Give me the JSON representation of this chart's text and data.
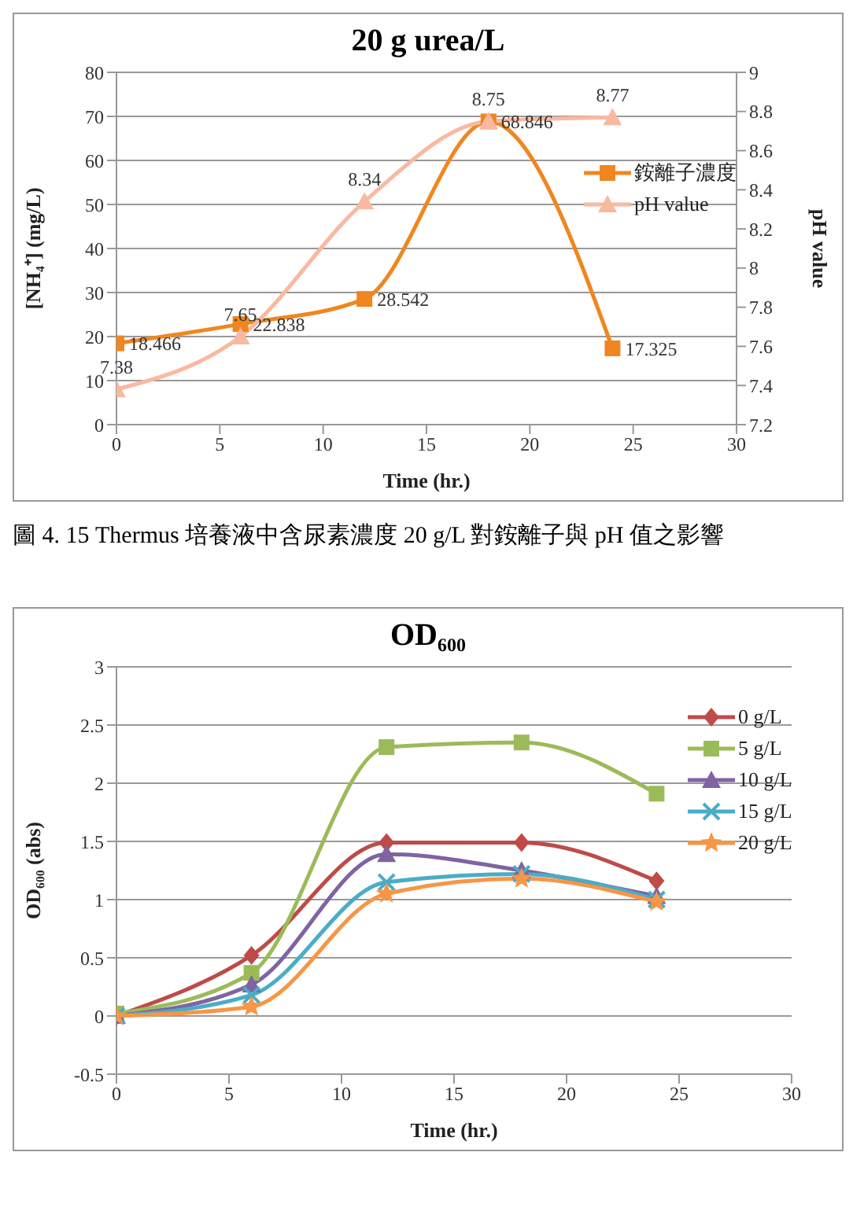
{
  "chart_data": [
    {
      "type": "line",
      "title": "20 g urea/L",
      "xlabel": "Time (hr.)",
      "ylabel": "[NH₄⁺] (mg/L)",
      "y2label": "pH value",
      "x": [
        0,
        6,
        12,
        18,
        24
      ],
      "xlim": [
        0,
        30
      ],
      "xticks": [
        0,
        5,
        10,
        15,
        20,
        25,
        30
      ],
      "ylim": [
        0,
        80
      ],
      "yticks": [
        0,
        10,
        20,
        30,
        40,
        50,
        60,
        70,
        80
      ],
      "y2lim": [
        7.2,
        9
      ],
      "y2ticks": [
        7.2,
        7.4,
        7.6,
        7.8,
        8,
        8.2,
        8.4,
        8.6,
        8.8,
        9
      ],
      "series": [
        {
          "name": "銨離子濃度",
          "color": "#f0861f",
          "marker": "square",
          "values": [
            18.466,
            22.838,
            28.542,
            68.846,
            17.325
          ]
        },
        {
          "name": "pH value",
          "color": "#f9b9a0",
          "marker": "triangle",
          "axis": "y2",
          "values": [
            7.38,
            7.65,
            8.34,
            8.75,
            8.77
          ]
        }
      ],
      "data_labels": true,
      "grid": "y",
      "legend": "right",
      "annotations": [
        "圖 4. 15 Thermus 培養液中含尿素濃度 20 g/L 對銨離子與 pH 值之影響"
      ]
    },
    {
      "type": "line",
      "title": "OD₆₀₀",
      "xlabel": "Time (hr.)",
      "ylabel": "OD₆₀₀ (abs)",
      "x": [
        0,
        6,
        12,
        18,
        24
      ],
      "xlim": [
        0,
        30
      ],
      "xticks": [
        0,
        5,
        10,
        15,
        20,
        25,
        30
      ],
      "ylim": [
        -0.5,
        3
      ],
      "yticks": [
        -0.5,
        0,
        0.5,
        1,
        1.5,
        2,
        2.5,
        3
      ],
      "series": [
        {
          "name": "0 g/L",
          "color": "#be4b48",
          "marker": "diamond",
          "values": [
            0,
            0.52,
            1.49,
            1.49,
            1.16
          ]
        },
        {
          "name": "5 g/L",
          "color": "#9bbb59",
          "marker": "square",
          "values": [
            0.02,
            0.37,
            2.31,
            2.35,
            1.91
          ]
        },
        {
          "name": "10 g/L",
          "color": "#7f63a2",
          "marker": "triangle",
          "values": [
            0,
            0.27,
            1.39,
            1.25,
            1.03
          ]
        },
        {
          "name": "15 g/L",
          "color": "#4bacc6",
          "marker": "cross",
          "values": [
            0,
            0.18,
            1.15,
            1.22,
            1.0
          ]
        },
        {
          "name": "20 g/L",
          "color": "#f79646",
          "marker": "star",
          "values": [
            0,
            0.08,
            1.05,
            1.18,
            0.98
          ]
        }
      ],
      "grid": "y",
      "legend": "right"
    }
  ]
}
